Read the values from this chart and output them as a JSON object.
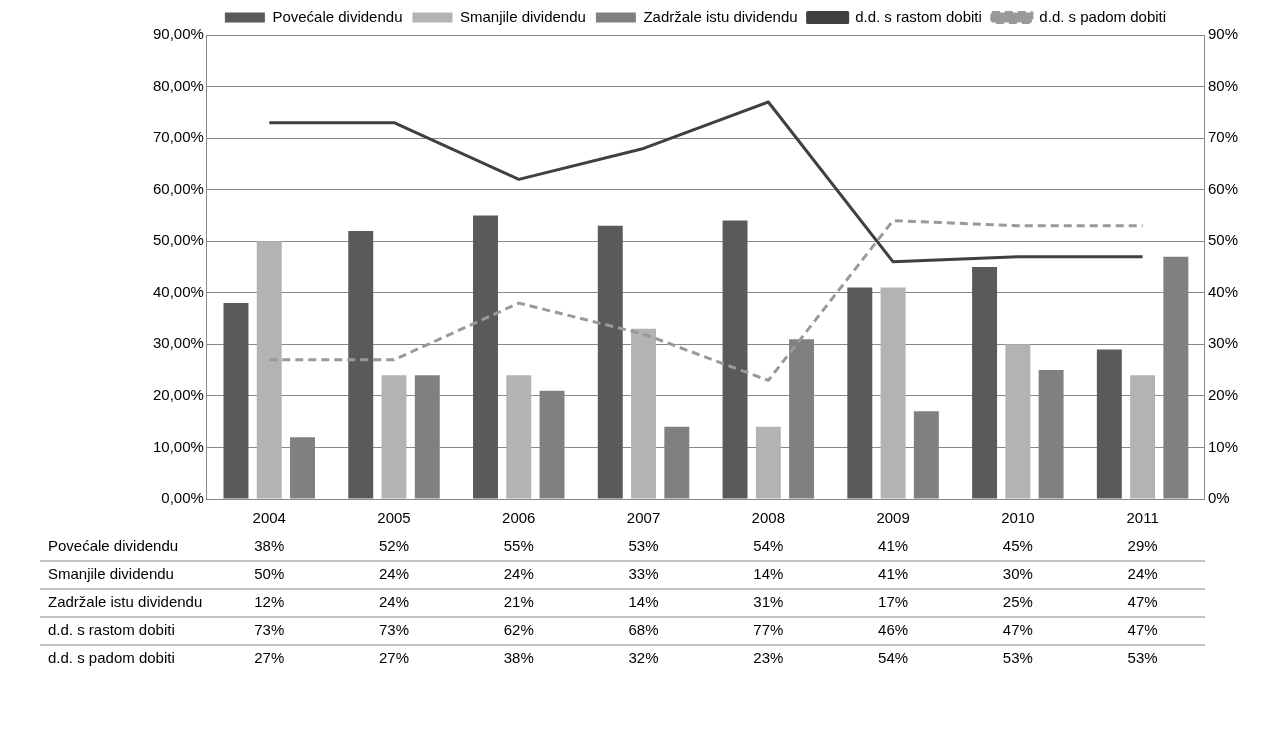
{
  "chart_data": {
    "type": "bar",
    "categories": [
      "2004",
      "2005",
      "2006",
      "2007",
      "2008",
      "2009",
      "2010",
      "2011"
    ],
    "series": [
      {
        "name": "Povećale dividendu",
        "color": "#5a5a5a",
        "values": [
          38,
          52,
          55,
          53,
          54,
          41,
          45,
          29
        ],
        "value_labels": [
          "38%",
          "52%",
          "55%",
          "53%",
          "54%",
          "41%",
          "45%",
          "29%"
        ]
      },
      {
        "name": "Smanjile dividendu",
        "color": "#b3b3b3",
        "values": [
          50,
          24,
          24,
          33,
          14,
          41,
          30,
          24
        ],
        "value_labels": [
          "50%",
          "24%",
          "24%",
          "33%",
          "14%",
          "41%",
          "30%",
          "24%"
        ]
      },
      {
        "name": "Zadržale istu dividendu",
        "color": "#808080",
        "values": [
          12,
          24,
          21,
          14,
          31,
          17,
          25,
          47
        ],
        "value_labels": [
          "12%",
          "24%",
          "21%",
          "14%",
          "31%",
          "17%",
          "25%",
          "47%"
        ]
      },
      {
        "name": "d.d. s rastom dobiti",
        "type": "line",
        "axis": "y2",
        "line_style": "solid",
        "color": "#404040",
        "values": [
          73,
          73,
          62,
          68,
          77,
          46,
          47,
          47
        ],
        "value_labels": [
          "73%",
          "73%",
          "62%",
          "68%",
          "77%",
          "46%",
          "47%",
          "47%"
        ]
      },
      {
        "name": "d.d. s padom dobiti",
        "type": "line",
        "axis": "y2",
        "line_style": "dashed",
        "color": "#999999",
        "values": [
          27,
          27,
          38,
          32,
          23,
          54,
          53,
          53
        ],
        "value_labels": [
          "27%",
          "27%",
          "38%",
          "32%",
          "23%",
          "54%",
          "53%",
          "53%"
        ]
      }
    ],
    "ylim": [
      0,
      90
    ],
    "yticks": [
      {
        "value": 0,
        "label": "0,00%"
      },
      {
        "value": 10,
        "label": "10,00%"
      },
      {
        "value": 20,
        "label": "20,00%"
      },
      {
        "value": 30,
        "label": "30,00%"
      },
      {
        "value": 40,
        "label": "40,00%"
      },
      {
        "value": 50,
        "label": "50,00%"
      },
      {
        "value": 60,
        "label": "60,00%"
      },
      {
        "value": 70,
        "label": "70,00%"
      },
      {
        "value": 80,
        "label": "80,00%"
      },
      {
        "value": 90,
        "label": "90,00%"
      }
    ],
    "y2lim": [
      0,
      90
    ],
    "y2ticks": [
      {
        "value": 0,
        "label": "0%"
      },
      {
        "value": 10,
        "label": "10%"
      },
      {
        "value": 20,
        "label": "20%"
      },
      {
        "value": 30,
        "label": "30%"
      },
      {
        "value": 40,
        "label": "40%"
      },
      {
        "value": 50,
        "label": "50%"
      },
      {
        "value": 60,
        "label": "60%"
      },
      {
        "value": 70,
        "label": "70%"
      },
      {
        "value": 80,
        "label": "80%"
      },
      {
        "value": 90,
        "label": "90%"
      }
    ],
    "grid": "y",
    "legend": "top",
    "marker": "none"
  }
}
